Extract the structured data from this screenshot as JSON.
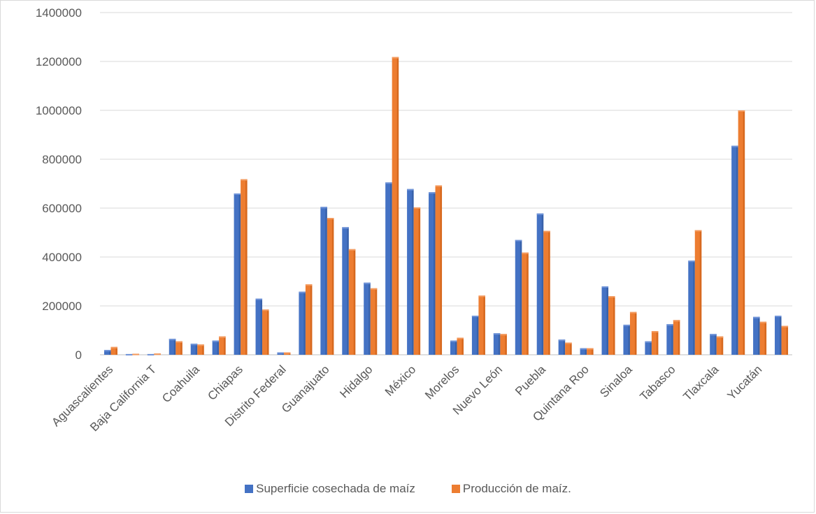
{
  "chart_data": {
    "type": "bar",
    "title": "",
    "xlabel": "",
    "ylabel": "",
    "ylim": [
      0,
      1400000
    ],
    "yticks": [
      "0",
      "200000",
      "400000",
      "600000",
      "800000",
      "1000000",
      "1200000",
      "1400000"
    ],
    "grid": true,
    "legend_position": "bottom",
    "categories": [
      "Aguascalientes",
      "",
      "Baja California T",
      "",
      "Coahuila",
      "",
      "Chiapas",
      "",
      "Distrito Federal",
      "",
      "Guanajuato",
      "",
      "Hidalgo",
      "",
      "México",
      "",
      "Morelos",
      "",
      "Nuevo León",
      "",
      "Puebla",
      "",
      "Quintana Roo",
      "",
      "Sinaloa",
      "",
      "Tabasco",
      "",
      "Tlaxcala",
      "",
      "Yucatán",
      ""
    ],
    "series": [
      {
        "name": "Superficie cosechada de maíz",
        "color": "#4472c4",
        "values": [
          20000,
          3000,
          3000,
          65000,
          45000,
          58000,
          660000,
          230000,
          10000,
          258000,
          605000,
          522000,
          295000,
          705000,
          678000,
          665000,
          58000,
          160000,
          88000,
          470000,
          578000,
          62000,
          27000,
          280000,
          123000,
          55000,
          125000,
          385000,
          85000,
          855000,
          155000,
          160000
        ]
      },
      {
        "name": "Producción de maíz.",
        "color": "#ed7d31",
        "values": [
          32000,
          4000,
          5000,
          55000,
          42000,
          75000,
          718000,
          185000,
          10000,
          288000,
          560000,
          432000,
          272000,
          1218000,
          603000,
          693000,
          70000,
          242000,
          85000,
          418000,
          507000,
          50000,
          27000,
          240000,
          175000,
          97000,
          142000,
          510000,
          75000,
          1000000,
          135000,
          118000
        ]
      }
    ]
  }
}
